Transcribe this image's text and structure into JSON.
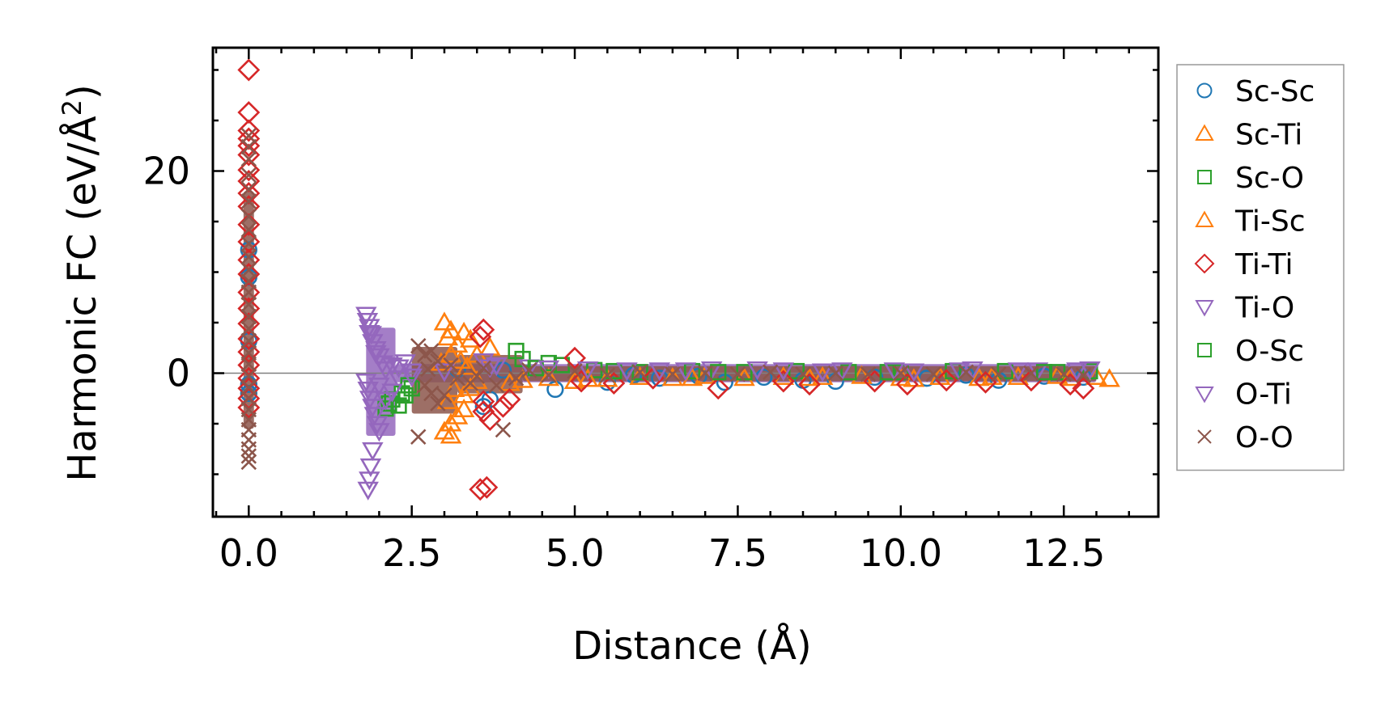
{
  "chart_data": {
    "type": "scatter",
    "xlabel": "Distance (Å)",
    "ylabel": "Harmonic FC (eV/Å",
    "ylabel_sup": "2",
    "ylabel_close": ")",
    "xlim": [
      -0.55,
      13.95
    ],
    "ylim": [
      -14.2,
      32.2
    ],
    "xticks": [
      0.0,
      2.5,
      5.0,
      7.5,
      10.0,
      12.5
    ],
    "xtick_labels": [
      "0.0",
      "2.5",
      "5.0",
      "7.5",
      "10.0",
      "12.5"
    ],
    "yticks": [
      0,
      20
    ],
    "ytick_labels": [
      "0",
      "20"
    ],
    "x_minor_step": 0.5,
    "y_minor_step": 5,
    "zero_line": true,
    "legend_position": "outside-right",
    "series": [
      {
        "name": "Sc-Sc",
        "marker": "circle",
        "color": "#1f77b4",
        "points": [
          [
            0,
            12.2
          ],
          [
            0,
            9.5
          ],
          [
            0,
            3.2
          ],
          [
            0,
            -1.1
          ],
          [
            0,
            -2.0
          ],
          [
            3.2,
            0.4
          ],
          [
            3.6,
            -3.3
          ],
          [
            3.7,
            -2.6
          ],
          [
            3.9,
            0.3
          ],
          [
            4.7,
            -1.6
          ],
          [
            5.5,
            -0.9
          ],
          [
            5.9,
            -0.2
          ],
          [
            6.3,
            -0.5
          ],
          [
            6.9,
            -0.3
          ],
          [
            7.3,
            -0.9
          ],
          [
            7.9,
            -0.4
          ],
          [
            8.5,
            -0.7
          ],
          [
            9.0,
            -0.8
          ],
          [
            9.6,
            -0.4
          ],
          [
            10.4,
            -0.5
          ],
          [
            11.0,
            -0.2
          ],
          [
            11.5,
            -0.7
          ],
          [
            12.2,
            -0.3
          ],
          [
            12.8,
            -0.4
          ]
        ]
      },
      {
        "name": "Sc-Ti",
        "marker": "triangle-up",
        "color": "#ff7f0e",
        "points": [
          [
            3.0,
            5.0
          ],
          [
            3.1,
            4.2
          ],
          [
            3.05,
            3.5
          ],
          [
            3.2,
            2.8
          ],
          [
            3.3,
            4.0
          ],
          [
            3.4,
            3.3
          ],
          [
            3.0,
            -5.8
          ],
          [
            3.1,
            -5.0
          ],
          [
            3.2,
            -4.3
          ],
          [
            3.3,
            -3.6
          ],
          [
            3.05,
            -2.8
          ],
          [
            3.4,
            -1.5
          ],
          [
            3.5,
            -0.8
          ],
          [
            3.1,
            -6.2
          ],
          [
            3.5,
            1.8
          ],
          [
            3.7,
            2.5
          ],
          [
            4.0,
            -1.0
          ],
          [
            4.2,
            -0.7
          ],
          [
            4.6,
            -0.5
          ],
          [
            5.0,
            -0.8
          ],
          [
            5.5,
            -0.6
          ],
          [
            6.0,
            -0.4
          ],
          [
            6.5,
            -0.5
          ],
          [
            7.0,
            -0.3
          ],
          [
            7.6,
            -0.5
          ],
          [
            8.2,
            -0.4
          ],
          [
            8.8,
            -0.4
          ],
          [
            9.4,
            -0.3
          ],
          [
            10.0,
            -0.5
          ],
          [
            10.6,
            -0.4
          ],
          [
            11.2,
            -0.5
          ],
          [
            11.8,
            -0.4
          ],
          [
            12.4,
            -0.3
          ],
          [
            13.0,
            -0.4
          ],
          [
            13.2,
            -0.6
          ]
        ]
      },
      {
        "name": "Sc-O",
        "marker": "square",
        "color": "#2ca02c",
        "points": [
          [
            2.1,
            -3.5
          ],
          [
            2.15,
            -3.0
          ],
          [
            2.2,
            -2.6
          ],
          [
            2.3,
            -3.2
          ],
          [
            2.4,
            -2.2
          ],
          [
            2.5,
            -1.5
          ],
          [
            4.1,
            2.2
          ],
          [
            4.2,
            1.4
          ],
          [
            4.6,
            1.0
          ],
          [
            4.8,
            0.8
          ],
          [
            5.3,
            0.3
          ],
          [
            6.0,
            0.1
          ],
          [
            6.8,
            0.2
          ],
          [
            7.6,
            0.1
          ],
          [
            8.4,
            0.2
          ],
          [
            9.2,
            0.1
          ],
          [
            10.0,
            0.1
          ],
          [
            10.8,
            0.2
          ],
          [
            11.6,
            0.2
          ],
          [
            12.4,
            0.1
          ],
          [
            12.9,
            0.2
          ]
        ]
      },
      {
        "name": "Ti-Sc",
        "marker": "triangle-up",
        "color": "#ff7f0e",
        "points": [
          [
            2.95,
            1.0
          ],
          [
            3.1,
            1.8
          ],
          [
            3.25,
            1.2
          ],
          [
            3.35,
            0.6
          ],
          [
            3.15,
            -1.6
          ],
          [
            3.3,
            -2.2
          ],
          [
            5.2,
            -0.6
          ],
          [
            6.8,
            -0.5
          ],
          [
            8.6,
            -0.5
          ],
          [
            10.2,
            -0.6
          ],
          [
            11.4,
            -0.4
          ],
          [
            12.6,
            -0.5
          ]
        ]
      },
      {
        "name": "Ti-Ti",
        "marker": "diamond",
        "color": "#d62728",
        "points": [
          [
            0,
            30.0
          ],
          [
            0,
            25.8
          ],
          [
            0,
            24.0
          ],
          [
            0,
            23.2
          ],
          [
            0,
            22.5
          ],
          [
            0,
            21.6
          ],
          [
            0,
            20.1
          ],
          [
            0,
            19.0
          ],
          [
            0,
            17.8
          ],
          [
            0,
            16.5
          ],
          [
            0,
            14.7
          ],
          [
            0,
            13.0
          ],
          [
            0,
            11.2
          ],
          [
            0,
            9.8
          ],
          [
            0,
            8.0
          ],
          [
            0,
            6.4
          ],
          [
            0,
            4.9
          ],
          [
            0,
            3.4
          ],
          [
            0,
            2.1
          ],
          [
            0,
            0.8
          ],
          [
            0,
            -0.5
          ],
          [
            0,
            -1.5
          ],
          [
            0,
            -2.5
          ],
          [
            0,
            -3.4
          ],
          [
            3.55,
            -11.5
          ],
          [
            3.65,
            -11.3
          ],
          [
            3.6,
            4.3
          ],
          [
            3.55,
            3.6
          ],
          [
            3.6,
            -2.8
          ],
          [
            3.7,
            -4.6
          ],
          [
            3.6,
            -3.8
          ],
          [
            3.9,
            -3.3
          ],
          [
            4.0,
            -2.6
          ],
          [
            5.0,
            1.5
          ],
          [
            5.1,
            -0.8
          ],
          [
            5.6,
            -1.0
          ],
          [
            6.2,
            -0.5
          ],
          [
            7.2,
            -1.5
          ],
          [
            8.2,
            -0.8
          ],
          [
            8.6,
            -1.1
          ],
          [
            9.6,
            -0.8
          ],
          [
            10.1,
            -1.1
          ],
          [
            10.7,
            -0.7
          ],
          [
            11.3,
            -0.9
          ],
          [
            12.0,
            -0.7
          ],
          [
            12.6,
            -1.1
          ],
          [
            12.8,
            -1.5
          ]
        ]
      },
      {
        "name": "Ti-O",
        "marker": "triangle-down",
        "color": "#9467bd",
        "points": [
          [
            1.8,
            5.8
          ],
          [
            1.82,
            5.2
          ],
          [
            1.85,
            4.6
          ],
          [
            1.88,
            3.9
          ],
          [
            1.9,
            3.1
          ],
          [
            1.95,
            2.4
          ],
          [
            2.0,
            1.7
          ],
          [
            2.05,
            1.0
          ],
          [
            2.1,
            0.4
          ],
          [
            1.8,
            -0.8
          ],
          [
            1.83,
            -1.6
          ],
          [
            1.86,
            -2.5
          ],
          [
            1.9,
            -3.3
          ],
          [
            1.93,
            -4.1
          ],
          [
            1.97,
            -5.0
          ],
          [
            2.0,
            -5.7
          ],
          [
            1.9,
            -7.6
          ],
          [
            1.87,
            -9.2
          ],
          [
            1.85,
            -10.5
          ],
          [
            1.83,
            -11.5
          ],
          [
            2.2,
            0.8
          ],
          [
            2.3,
            -0.5
          ],
          [
            2.4,
            1.1
          ],
          [
            2.5,
            0.2
          ],
          [
            3.6,
            1.2
          ],
          [
            3.7,
            0.6
          ],
          [
            4.3,
            0.6
          ],
          [
            5.2,
            0.4
          ],
          [
            6.3,
            0.3
          ],
          [
            7.1,
            0.4
          ],
          [
            8.2,
            0.3
          ],
          [
            9.1,
            0.3
          ],
          [
            10.2,
            0.2
          ],
          [
            11.1,
            0.4
          ],
          [
            12.1,
            0.3
          ],
          [
            12.9,
            0.4
          ]
        ]
      },
      {
        "name": "O-Sc",
        "marker": "square",
        "color": "#2ca02c",
        "points": [
          [
            2.35,
            -2.0
          ],
          [
            2.45,
            -1.2
          ],
          [
            4.4,
            0.5
          ],
          [
            5.6,
            0.2
          ],
          [
            7.2,
            0.1
          ],
          [
            9.8,
            0.1
          ],
          [
            12.2,
            0.1
          ]
        ]
      },
      {
        "name": "O-Ti",
        "marker": "triangle-down",
        "color": "#9467bd",
        "points": [
          [
            1.85,
            4.0
          ],
          [
            1.95,
            2.0
          ],
          [
            2.0,
            -1.2
          ],
          [
            2.1,
            -2.6
          ],
          [
            2.2,
            -1.8
          ],
          [
            2.3,
            0.6
          ],
          [
            2.5,
            -0.3
          ],
          [
            3.0,
            0.2
          ],
          [
            3.8,
            0.8
          ],
          [
            4.6,
            0.5
          ],
          [
            5.8,
            0.3
          ],
          [
            6.7,
            0.3
          ],
          [
            7.8,
            0.4
          ],
          [
            8.8,
            0.2
          ],
          [
            9.9,
            0.3
          ],
          [
            10.9,
            0.3
          ],
          [
            11.8,
            0.3
          ],
          [
            12.7,
            0.3
          ]
        ]
      },
      {
        "name": "O-O",
        "marker": "x",
        "color": "#8c564b",
        "points": [
          [
            0,
            23.5
          ],
          [
            0,
            22.4
          ],
          [
            0,
            21.2
          ],
          [
            0,
            19.6
          ],
          [
            0,
            18.2
          ],
          [
            0,
            17.0
          ],
          [
            0,
            15.5
          ],
          [
            0,
            14.2
          ],
          [
            0,
            12.8
          ],
          [
            0,
            11.5
          ],
          [
            0,
            10.2
          ],
          [
            0,
            9.1
          ],
          [
            0,
            8.0
          ],
          [
            0,
            6.8
          ],
          [
            0,
            5.6
          ],
          [
            0,
            4.4
          ],
          [
            0,
            3.2
          ],
          [
            0,
            2.0
          ],
          [
            0,
            0.9
          ],
          [
            0,
            -0.3
          ],
          [
            0,
            -1.4
          ],
          [
            0,
            -2.5
          ],
          [
            0,
            -3.6
          ],
          [
            0,
            -4.6
          ],
          [
            0,
            -5.6
          ],
          [
            0,
            -6.6
          ],
          [
            0,
            -7.5
          ],
          [
            0,
            -8.2
          ],
          [
            0,
            -8.8
          ],
          [
            2.6,
            -6.3
          ],
          [
            2.6,
            2.7
          ],
          [
            2.7,
            1.8
          ],
          [
            2.8,
            2.2
          ],
          [
            2.9,
            1.2
          ],
          [
            2.7,
            -1.2
          ],
          [
            2.8,
            -2.0
          ],
          [
            2.9,
            -3.0
          ],
          [
            3.0,
            -2.2
          ],
          [
            2.75,
            0.4
          ],
          [
            3.1,
            0.8
          ],
          [
            3.2,
            -0.5
          ],
          [
            3.4,
            -1.0
          ],
          [
            3.5,
            -0.3
          ],
          [
            3.6,
            0.5
          ],
          [
            3.8,
            -1.2
          ],
          [
            3.9,
            -5.6
          ],
          [
            4.1,
            -0.5
          ],
          [
            4.3,
            0.3
          ],
          [
            4.6,
            -0.2
          ],
          [
            5.0,
            0.2
          ],
          [
            5.5,
            -0.2
          ],
          [
            6.0,
            0.1
          ],
          [
            6.5,
            -0.1
          ],
          [
            7.0,
            0.0
          ],
          [
            7.5,
            -0.1
          ],
          [
            8.0,
            0.1
          ],
          [
            8.5,
            -0.1
          ],
          [
            9.0,
            0.0
          ],
          [
            9.5,
            -0.1
          ],
          [
            10.0,
            0.0
          ],
          [
            10.5,
            -0.1
          ],
          [
            11.0,
            0.1
          ],
          [
            11.5,
            -0.1
          ],
          [
            12.0,
            0.0
          ],
          [
            12.5,
            -0.1
          ],
          [
            12.8,
            -0.2
          ]
        ]
      }
    ],
    "dense_bands": [
      {
        "series": "Ti-O",
        "color": "#9467bd",
        "x0": 1.8,
        "x1": 2.25,
        "y0": -6.2,
        "y1": 4.5
      },
      {
        "series": "Ti-O",
        "color": "#9467bd",
        "x0": 2.25,
        "x1": 13.0,
        "y0": -0.9,
        "y1": 0.9
      },
      {
        "series": "O-O",
        "color": "#8c564b",
        "x0": 2.5,
        "x1": 3.2,
        "y0": -4.0,
        "y1": 2.6
      },
      {
        "series": "O-O",
        "color": "#8c564b",
        "x0": 3.2,
        "x1": 4.2,
        "y0": -2.0,
        "y1": 1.8
      },
      {
        "series": "O-O",
        "color": "#8c564b",
        "x0": 4.2,
        "x1": 13.0,
        "y0": -0.8,
        "y1": 0.7
      },
      {
        "series": "O-O",
        "color": "#8c564b",
        "x0": -0.08,
        "x1": 0.08,
        "y0": -5.5,
        "y1": 18.0
      }
    ]
  }
}
